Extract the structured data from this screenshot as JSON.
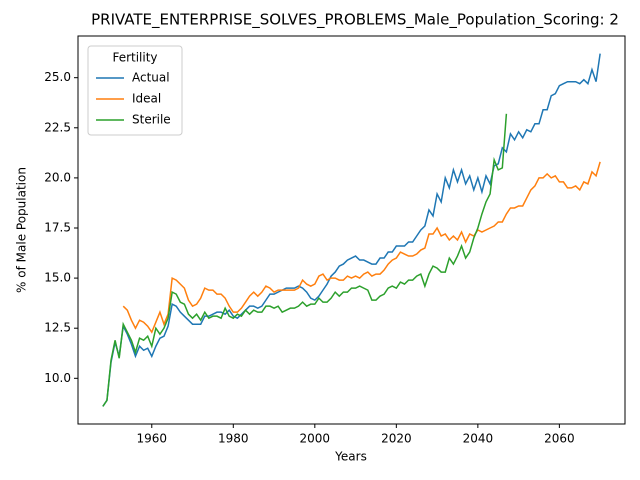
{
  "chart_data": {
    "type": "line",
    "title": "PRIVATE_ENTERPRISE_SOLVES_PROBLEMS_Male_Population_Scoring: 2",
    "xlabel": "Years",
    "ylabel": "% of Male Population",
    "legend_title": "Fertility",
    "legend": "upper left",
    "x": [
      1948,
      1949,
      1950,
      1951,
      1952,
      1953,
      1954,
      1955,
      1956,
      1957,
      1958,
      1959,
      1960,
      1961,
      1962,
      1963,
      1964,
      1965,
      1966,
      1967,
      1968,
      1969,
      1970,
      1971,
      1972,
      1973,
      1974,
      1975,
      1976,
      1977,
      1978,
      1979,
      1980,
      1981,
      1982,
      1983,
      1984,
      1985,
      1986,
      1987,
      1988,
      1989,
      1990,
      1991,
      1992,
      1993,
      1994,
      1995,
      1996,
      1997,
      1998,
      1999,
      2000,
      2001,
      2002,
      2003,
      2004,
      2005,
      2006,
      2007,
      2008,
      2009,
      2010,
      2011,
      2012,
      2013,
      2014,
      2015,
      2016,
      2017,
      2018,
      2019,
      2020,
      2021,
      2022,
      2023,
      2024,
      2025,
      2026,
      2027,
      2028,
      2029,
      2030,
      2031,
      2032,
      2033,
      2034,
      2035,
      2036,
      2037,
      2038,
      2039,
      2040,
      2041,
      2042,
      2043,
      2044,
      2045,
      2046,
      2047,
      2048,
      2049,
      2050,
      2051,
      2052,
      2053,
      2054,
      2055,
      2056,
      2057,
      2058,
      2059,
      2060,
      2061,
      2062,
      2063,
      2064,
      2065,
      2066,
      2067,
      2068,
      2069,
      2070
    ],
    "series": [
      {
        "name": "Actual",
        "color": "#1f77b4",
        "values": [
          8.6,
          8.9,
          10.8,
          11.8,
          11.1,
          12.6,
          12.2,
          11.7,
          11.1,
          11.6,
          11.4,
          11.5,
          11.1,
          11.6,
          12.0,
          12.1,
          12.6,
          13.7,
          13.6,
          13.3,
          13.1,
          12.9,
          12.7,
          12.7,
          12.7,
          13.1,
          13.1,
          13.2,
          13.3,
          13.3,
          13.2,
          13.4,
          13.1,
          13.0,
          13.2,
          13.4,
          13.6,
          13.6,
          13.5,
          13.6,
          13.9,
          14.2,
          14.2,
          14.3,
          14.4,
          14.5,
          14.5,
          14.5,
          14.6,
          14.5,
          14.3,
          14.0,
          13.9,
          14.1,
          14.4,
          14.7,
          15.1,
          15.3,
          15.6,
          15.7,
          15.9,
          16.0,
          16.1,
          15.9,
          15.9,
          15.8,
          15.7,
          15.7,
          16.0,
          16.0,
          16.3,
          16.3,
          16.6,
          16.6,
          16.6,
          16.8,
          16.8,
          17.1,
          17.4,
          17.6,
          18.4,
          18.1,
          19.2,
          18.8,
          20.0,
          19.5,
          20.4,
          19.8,
          20.4,
          19.7,
          20.1,
          19.4,
          20.0,
          19.3,
          20.1,
          19.7,
          20.6,
          20.7,
          21.5,
          21.3,
          22.2,
          21.9,
          22.3,
          22.0,
          22.4,
          22.3,
          22.7,
          22.7,
          23.4,
          23.4,
          24.1,
          24.2,
          24.6,
          24.7,
          24.8,
          24.8,
          24.8,
          24.7,
          24.9,
          24.7,
          25.4,
          24.8,
          26.2
        ]
      },
      {
        "name": "Ideal",
        "color": "#ff7f0e",
        "values": [
          null,
          null,
          null,
          null,
          null,
          13.6,
          13.4,
          12.9,
          12.5,
          12.9,
          12.8,
          12.6,
          12.3,
          12.8,
          13.3,
          12.7,
          13.2,
          15.0,
          14.9,
          14.7,
          14.5,
          13.9,
          13.6,
          13.7,
          14.0,
          14.5,
          14.4,
          14.4,
          14.2,
          14.2,
          14.0,
          13.6,
          13.3,
          13.3,
          13.5,
          13.8,
          14.1,
          14.3,
          14.1,
          14.3,
          14.6,
          14.5,
          14.3,
          14.4,
          14.4,
          14.4,
          14.4,
          14.4,
          14.5,
          14.9,
          14.7,
          14.6,
          14.7,
          15.1,
          15.2,
          14.9,
          15.0,
          15.0,
          14.9,
          14.9,
          15.1,
          15.0,
          15.1,
          15.0,
          15.2,
          15.3,
          15.1,
          15.2,
          15.2,
          15.4,
          15.7,
          15.9,
          16.0,
          16.3,
          16.2,
          16.1,
          16.1,
          16.2,
          16.4,
          16.5,
          17.2,
          17.2,
          17.5,
          17.1,
          17.2,
          16.9,
          17.1,
          16.9,
          17.3,
          16.8,
          17.2,
          17.1,
          17.4,
          17.3,
          17.4,
          17.5,
          17.6,
          17.8,
          17.8,
          18.2,
          18.5,
          18.5,
          18.6,
          18.6,
          19.0,
          19.4,
          19.6,
          20.0,
          20.0,
          20.2,
          20.0,
          20.1,
          19.8,
          19.8,
          19.5,
          19.5,
          19.6,
          19.4,
          19.8,
          19.7,
          20.3,
          20.1,
          20.8
        ]
      },
      {
        "name": "Sterile",
        "color": "#2ca02c",
        "values": [
          8.6,
          8.9,
          10.9,
          11.9,
          11.0,
          12.7,
          12.3,
          11.9,
          11.3,
          12.0,
          11.9,
          12.1,
          11.6,
          12.5,
          12.2,
          12.5,
          13.0,
          14.3,
          14.2,
          13.8,
          13.7,
          13.2,
          13.0,
          13.2,
          12.9,
          13.3,
          13.0,
          13.1,
          13.1,
          13.0,
          13.5,
          13.1,
          13.0,
          13.2,
          13.1,
          13.4,
          13.2,
          13.4,
          13.3,
          13.3,
          13.6,
          13.6,
          13.5,
          13.6,
          13.3,
          13.4,
          13.5,
          13.5,
          13.6,
          13.8,
          13.6,
          13.7,
          13.7,
          14.0,
          13.8,
          13.8,
          14.0,
          14.3,
          14.1,
          14.3,
          14.3,
          14.5,
          14.5,
          14.6,
          14.5,
          14.4,
          13.9,
          13.9,
          14.1,
          14.2,
          14.5,
          14.6,
          14.5,
          14.8,
          14.7,
          14.9,
          14.9,
          15.1,
          15.2,
          14.6,
          15.2,
          15.6,
          15.5,
          15.3,
          15.3,
          16.0,
          15.7,
          16.1,
          16.6,
          16.0,
          16.3,
          17.0,
          17.5,
          18.2,
          18.8,
          19.2,
          20.9,
          20.4,
          20.5,
          23.2,
          null,
          null,
          null,
          null,
          null,
          null,
          null,
          null,
          null,
          null,
          null,
          null,
          null,
          null,
          null,
          null,
          null,
          null,
          null,
          null,
          null,
          null,
          null
        ]
      }
    ],
    "xlim": [
      1941.9,
      2076.1
    ],
    "ylim": [
      7.72,
      27.08
    ],
    "xticks": [
      1960,
      1980,
      2000,
      2020,
      2040,
      2060
    ],
    "yticks": [
      {
        "value": 10,
        "label": "10.0"
      },
      {
        "value": 12.5,
        "label": "12.5"
      },
      {
        "value": 15,
        "label": "15.0"
      },
      {
        "value": 17.5,
        "label": "17.5"
      },
      {
        "value": 20,
        "label": "20.0"
      },
      {
        "value": 22.5,
        "label": "22.5"
      },
      {
        "value": 25,
        "label": "25.0"
      }
    ]
  }
}
